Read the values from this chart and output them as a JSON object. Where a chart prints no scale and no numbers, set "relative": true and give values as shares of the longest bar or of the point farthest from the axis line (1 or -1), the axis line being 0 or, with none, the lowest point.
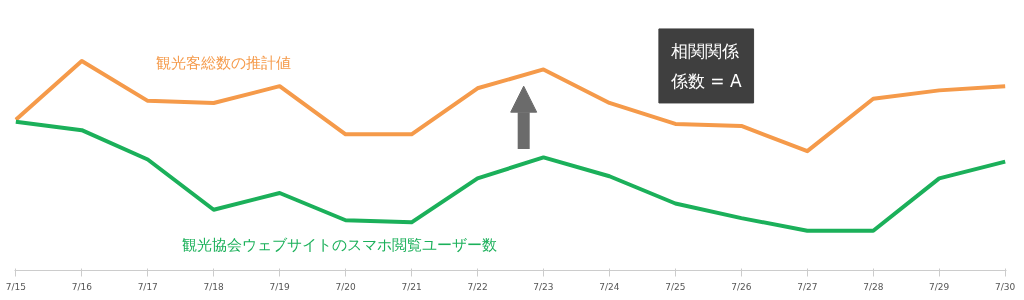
{
  "chart_data": {
    "type": "line",
    "relative": true,
    "marker": "none",
    "line_style": "solid",
    "categories": [
      "7/15",
      "7/16",
      "7/17",
      "7/18",
      "7/19",
      "7/20",
      "7/21",
      "7/22",
      "7/23",
      "7/24",
      "7/25",
      "7/26",
      "7/27",
      "7/28",
      "7/29",
      "7/30"
    ],
    "series": [
      {
        "name": "観光客総数の推計値",
        "color": "#f59a4a",
        "values": [
          0.72,
          1,
          0.81,
          0.8,
          0.88,
          0.65,
          0.65,
          0.87,
          0.96,
          0.8,
          0.7,
          0.69,
          0.57,
          0.82,
          0.86,
          0.88
        ]
      },
      {
        "name": "観光協会ウェブサイトのスマホ閲覧ユーザー数",
        "color": "#1bb05a",
        "values": [
          0.71,
          0.67,
          0.53,
          0.29,
          0.37,
          0.24,
          0.23,
          0.44,
          0.54,
          0.45,
          0.32,
          0.25,
          0.19,
          0.19,
          0.44,
          0.52
        ]
      }
    ],
    "annotations": [
      "相関関係",
      "係数 = A"
    ]
  }
}
